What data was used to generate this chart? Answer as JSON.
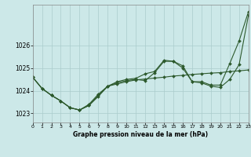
{
  "xlabel": "Graphe pression niveau de la mer (hPa)",
  "background_color": "#cce8e8",
  "grid_color": "#aacccc",
  "line_color": "#2d5a2d",
  "ylim": [
    1022.6,
    1027.8
  ],
  "xlim": [
    0,
    23
  ],
  "yticks": [
    1023,
    1024,
    1025,
    1026
  ],
  "ytick_labels": [
    "1023",
    "1024",
    "1025",
    "1026"
  ],
  "xtick_labels": [
    "0",
    "1",
    "2",
    "3",
    "4",
    "5",
    "6",
    "7",
    "8",
    "9",
    "10",
    "11",
    "12",
    "13",
    "14",
    "15",
    "16",
    "17",
    "18",
    "19",
    "20",
    "21",
    "22",
    "23"
  ],
  "series1": [
    1024.6,
    1024.1,
    1023.8,
    1023.55,
    1023.25,
    1023.15,
    1023.35,
    1023.75,
    1024.2,
    1024.3,
    1024.4,
    1024.48,
    1024.52,
    1024.56,
    1024.6,
    1024.65,
    1024.68,
    1024.72,
    1024.75,
    1024.78,
    1024.8,
    1024.85,
    1024.88,
    1024.92
  ],
  "series2": [
    1024.6,
    1024.1,
    1023.8,
    1023.55,
    1023.25,
    1023.15,
    1023.35,
    1023.8,
    1024.2,
    1024.35,
    1024.45,
    1024.5,
    1024.45,
    1024.8,
    1025.3,
    1025.3,
    1025.0,
    1024.4,
    1024.35,
    1024.2,
    1024.15,
    1024.5,
    1025.15,
    1027.35
  ],
  "series3": [
    1024.6,
    1024.1,
    1023.8,
    1023.55,
    1023.25,
    1023.15,
    1023.4,
    1023.85,
    1024.2,
    1024.4,
    1024.5,
    1024.55,
    1024.75,
    1024.85,
    1025.35,
    1025.3,
    1025.1,
    1024.4,
    1024.4,
    1024.25,
    1024.25,
    1025.2,
    1026.2,
    1027.5
  ],
  "marker": "D",
  "markersize": 2.0,
  "linewidth": 0.8
}
